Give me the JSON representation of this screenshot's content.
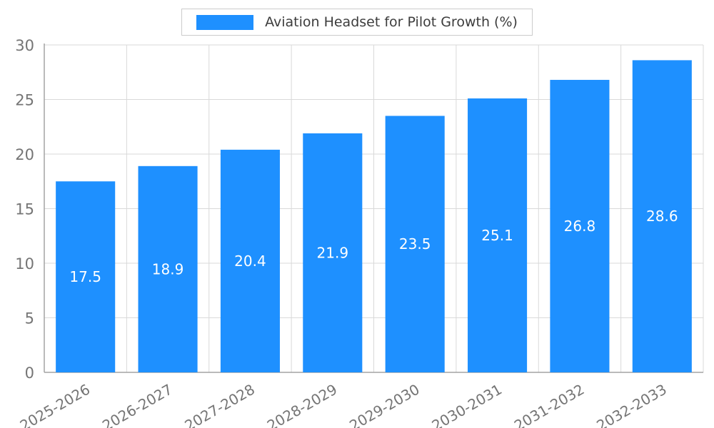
{
  "legend": {
    "label": "Aviation Headset for Pilot Growth (%)",
    "swatch_color": "#1E90FF"
  },
  "chart_data": {
    "type": "bar",
    "title": "Aviation Headset for Pilot Growth (%)",
    "categories": [
      "2025-2026",
      "2026-2027",
      "2027-2028",
      "2028-2029",
      "2029-2030",
      "2030-2031",
      "2031-2032",
      "2032-2033"
    ],
    "values": [
      17.5,
      18.9,
      20.4,
      21.9,
      23.5,
      25.1,
      26.8,
      28.6
    ],
    "value_labels": [
      "17.5",
      "18.9",
      "20.4",
      "21.9",
      "23.5",
      "25.1",
      "26.8",
      "28.6"
    ],
    "xlabel": "",
    "ylabel": "",
    "ylim": [
      0,
      30
    ],
    "yticks": [
      0,
      5,
      10,
      15,
      20,
      25,
      30
    ],
    "bar_color": "#1E90FF",
    "value_label_color": "#ffffff",
    "grid": true,
    "grid_color": "#d9d9d9",
    "axis_color": "#a3a3a3",
    "tick_label_color": "#757575",
    "legend_position": "top"
  }
}
